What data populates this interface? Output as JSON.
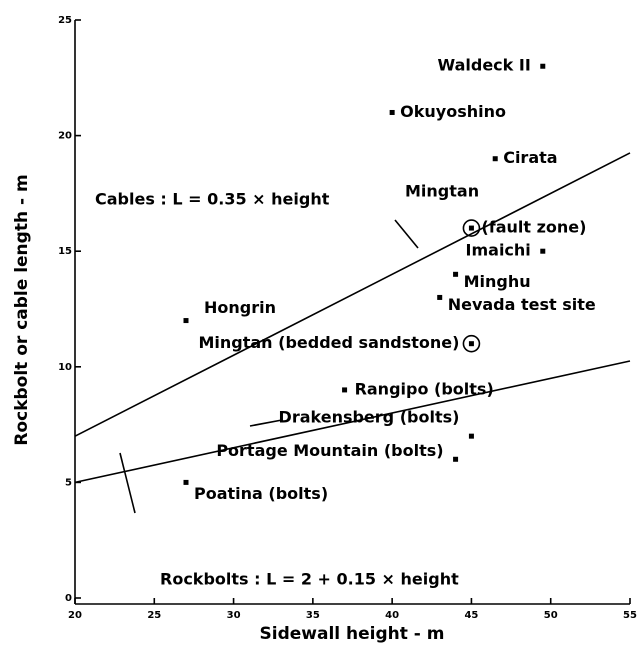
{
  "chart_data": {
    "type": "scatter",
    "x_label": "Sidewall height - m",
    "y_label": "Rockbolt or cable length - m",
    "xlim": [
      20,
      55
    ],
    "xticks": [
      20,
      25,
      30,
      35,
      40,
      45,
      50,
      55
    ],
    "ylim": [
      0,
      25
    ],
    "yticks": [
      0,
      5,
      10,
      15,
      20,
      25
    ],
    "points": [
      {
        "label": "Waldeck II",
        "x": 49.5,
        "y": 23
      },
      {
        "label": "Okuyoshino",
        "x": 40,
        "y": 21
      },
      {
        "label": "Cirata",
        "x": 46.5,
        "y": 19
      },
      {
        "label": "(fault zone)",
        "x": 45,
        "y": 16,
        "circled": true
      },
      {
        "label": "Imaichi",
        "x": 49.5,
        "y": 15
      },
      {
        "label": "Minghu",
        "x": 44,
        "y": 14
      },
      {
        "label": "Nevada test site",
        "x": 43,
        "y": 13
      },
      {
        "label": "Hongrin",
        "x": 27,
        "y": 12
      },
      {
        "label": "Mingtan (bedded sandstone)",
        "x": 45,
        "y": 11,
        "circled": true
      },
      {
        "label": "Rangipo (bolts)",
        "x": 37,
        "y": 9
      },
      {
        "label": "Drakensberg (bolts)",
        "x": 45,
        "y": 7
      },
      {
        "label": "Portage Mountain (bolts)",
        "x": 44,
        "y": 6
      },
      {
        "label": "Poatina (bolts)",
        "x": 27,
        "y": 5
      }
    ],
    "annotations": [
      "Mingtan"
    ],
    "lines": [
      {
        "label": "Cables : L = 0.35 × height",
        "x": [
          20,
          55
        ],
        "y": [
          7,
          19.25
        ]
      },
      {
        "label": "Rockbolts : L = 2 + 0.15 × height",
        "x": [
          20,
          55
        ],
        "y": [
          5,
          10.25
        ]
      }
    ]
  }
}
